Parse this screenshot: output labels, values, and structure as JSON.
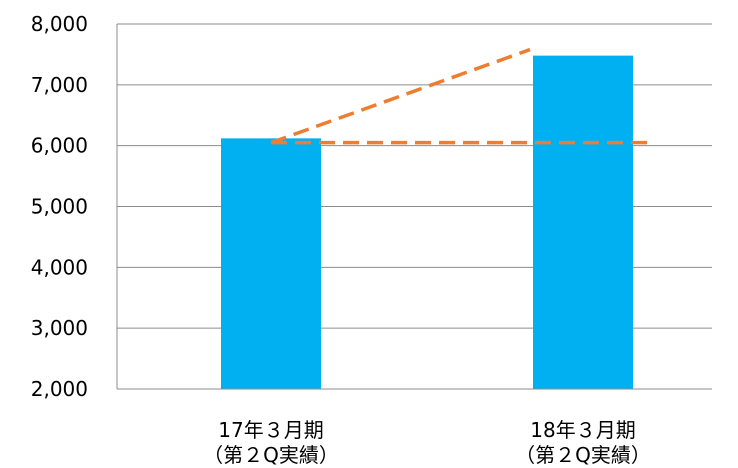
{
  "chart_data": {
    "type": "bar",
    "categories": [
      [
        "17年３月期",
        "（第２Q実績）"
      ],
      [
        "18年３月期",
        "（第２Q実績）"
      ]
    ],
    "values": [
      6120,
      7480
    ],
    "ylim": [
      2000,
      8000
    ],
    "yticks": [
      2000,
      3000,
      4000,
      5000,
      6000,
      7000,
      8000
    ],
    "ytick_labels": [
      "2,000",
      "3,000",
      "4,000",
      "5,000",
      "6,000",
      "7,000",
      "8,000"
    ],
    "grid": true,
    "bar_color": "#00B0F0",
    "annotations": [
      {
        "style": "dashed",
        "color": "#ED7D31",
        "from": [
          1,
          6050
        ],
        "to": [
          2,
          7580
        ]
      },
      {
        "style": "dashed",
        "color": "#ED7D31",
        "from": [
          1,
          6050
        ],
        "to": [
          2,
          6050
        ]
      }
    ]
  }
}
